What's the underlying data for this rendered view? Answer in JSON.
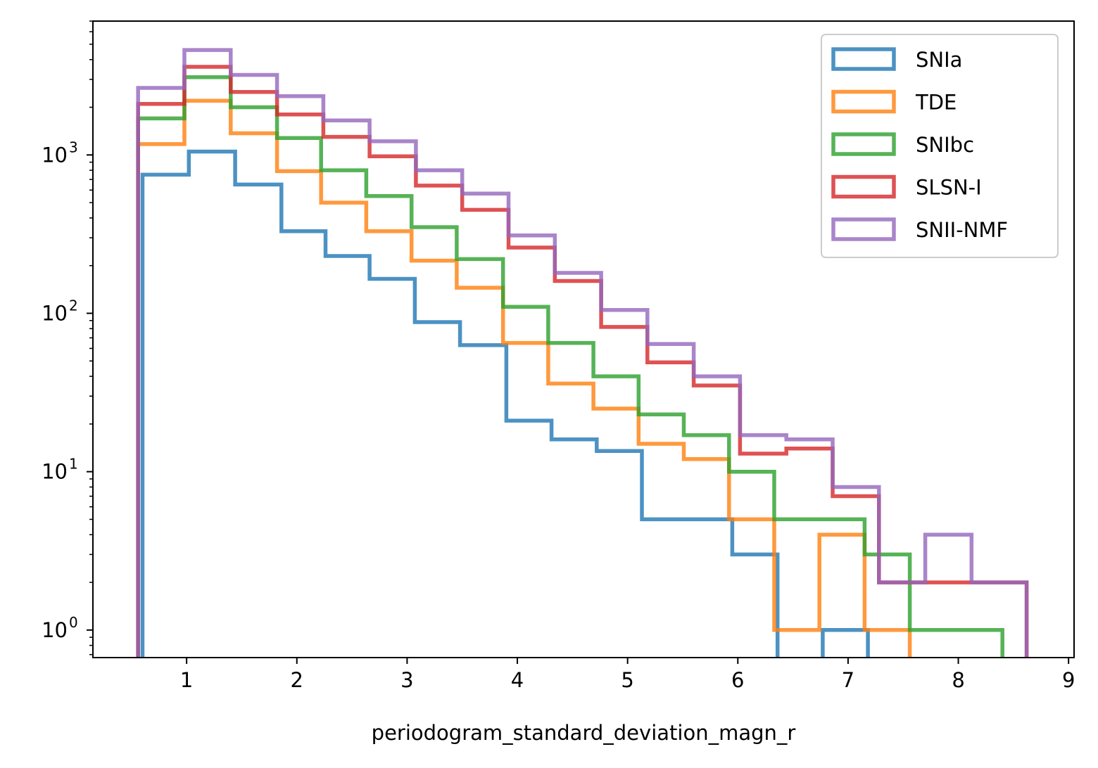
{
  "chart_data": {
    "type": "histogram",
    "xlabel": "periodogram_standard_deviation_magn_r",
    "ylabel": "",
    "xlim": [
      0.15,
      9.05
    ],
    "ylim": [
      0.67,
      7000
    ],
    "yscale": "log",
    "grid": false,
    "legend_position": "top-right",
    "x_ticks": [
      {
        "value": 1,
        "label": "1"
      },
      {
        "value": 2,
        "label": "2"
      },
      {
        "value": 3,
        "label": "3"
      },
      {
        "value": 4,
        "label": "4"
      },
      {
        "value": 5,
        "label": "5"
      },
      {
        "value": 6,
        "label": "6"
      },
      {
        "value": 7,
        "label": "7"
      },
      {
        "value": 8,
        "label": "8"
      },
      {
        "value": 9,
        "label": "9"
      }
    ],
    "y_ticks": [
      {
        "value": 1,
        "base": "10",
        "exp": "0"
      },
      {
        "value": 10,
        "base": "10",
        "exp": "1"
      },
      {
        "value": 100,
        "base": "10",
        "exp": "2"
      },
      {
        "value": 1000,
        "base": "10",
        "exp": "3"
      }
    ],
    "series": [
      {
        "name": "SNIa",
        "color": "#1f77b4",
        "bin_edges": [
          0.6,
          1.02,
          1.44,
          1.86,
          2.26,
          2.66,
          3.07,
          3.48,
          3.9,
          4.31,
          4.72,
          5.13,
          5.95,
          6.36,
          6.77,
          7.18
        ],
        "counts": [
          750,
          1050,
          650,
          330,
          230,
          165,
          88,
          63,
          21,
          16,
          13.5,
          5,
          3,
          0,
          1
        ]
      },
      {
        "name": "TDE",
        "color": "#ff7f0e",
        "bin_edges": [
          0.56,
          0.98,
          1.4,
          1.82,
          2.22,
          2.63,
          3.04,
          3.45,
          3.87,
          4.28,
          4.69,
          5.1,
          5.51,
          5.92,
          6.33,
          6.74,
          7.15,
          7.56
        ],
        "counts": [
          1170,
          2200,
          1370,
          790,
          500,
          330,
          215,
          145,
          65,
          36,
          25,
          15,
          12,
          5,
          1,
          4,
          1
        ]
      },
      {
        "name": "SNIbc",
        "color": "#2ca02c",
        "bin_edges": [
          0.56,
          0.98,
          1.4,
          1.82,
          2.22,
          2.63,
          3.04,
          3.45,
          3.87,
          4.28,
          4.69,
          5.1,
          5.51,
          5.92,
          6.33,
          7.15,
          7.56,
          8.4
        ],
        "counts": [
          1700,
          3100,
          2000,
          1280,
          800,
          550,
          350,
          220,
          110,
          65,
          40,
          23,
          17,
          10,
          5,
          3,
          1
        ]
      },
      {
        "name": "SLSN-I",
        "color": "#d62728",
        "bin_edges": [
          0.56,
          0.98,
          1.4,
          1.82,
          2.24,
          2.66,
          3.08,
          3.5,
          3.92,
          4.34,
          4.76,
          5.18,
          5.6,
          6.02,
          6.44,
          6.86,
          7.28,
          7.7,
          8.62
        ],
        "counts": [
          2100,
          3600,
          2500,
          1800,
          1300,
          980,
          640,
          450,
          260,
          160,
          82,
          49,
          35,
          13,
          14,
          7,
          2,
          2
        ]
      },
      {
        "name": "SNII-NMF",
        "color": "#9467bd",
        "bin_edges": [
          0.56,
          0.98,
          1.4,
          1.82,
          2.24,
          2.66,
          3.08,
          3.5,
          3.92,
          4.34,
          4.76,
          5.18,
          5.6,
          6.02,
          6.44,
          6.86,
          7.28,
          7.7,
          8.12,
          8.62
        ],
        "counts": [
          2650,
          4600,
          3200,
          2350,
          1650,
          1220,
          800,
          570,
          310,
          180,
          105,
          64,
          40,
          17,
          16,
          8,
          2,
          4,
          2
        ]
      }
    ]
  }
}
